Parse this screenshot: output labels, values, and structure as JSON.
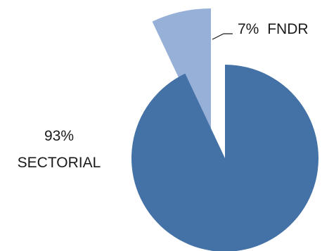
{
  "chart_data": {
    "type": "pie",
    "exploded": true,
    "slices": [
      {
        "name": "FNDR",
        "value": 7,
        "label_pct": "7%",
        "label_name": "FNDR",
        "color": "#97B0D8"
      },
      {
        "name": "SECTORIAL",
        "value": 93,
        "label_pct": "93%",
        "label_name": "SECTORIAL",
        "color": "#4472A6"
      }
    ]
  }
}
